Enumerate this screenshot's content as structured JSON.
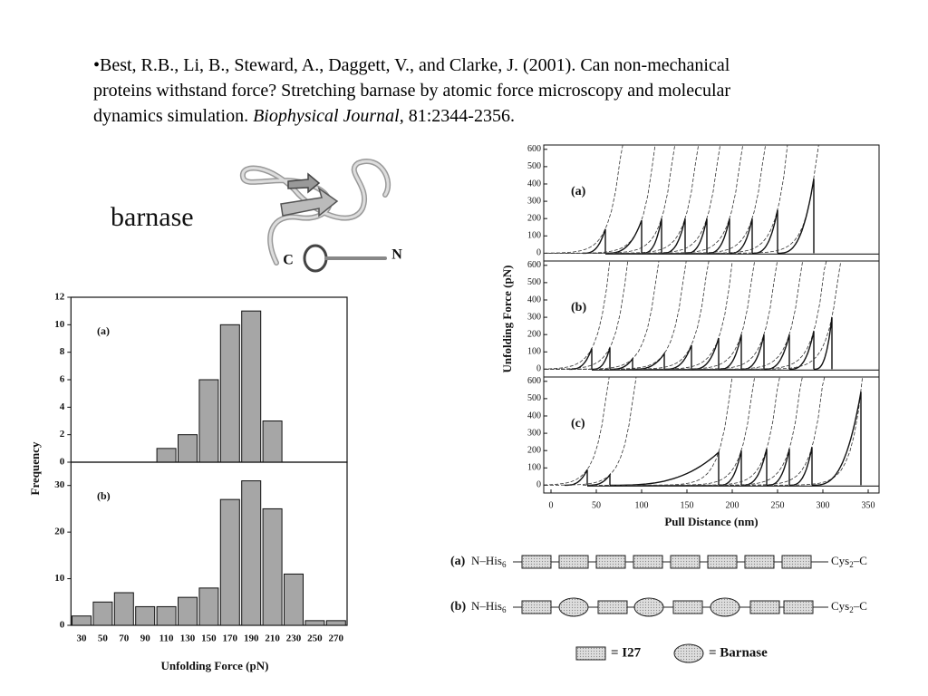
{
  "citation": {
    "line1": "•Best, R.B., Li, B., Steward, A., Daggett, V., and Clarke, J. (2001). Can non-mechanical",
    "line2": "proteins withstand force? Stretching barnase by atomic force microscopy and molecular",
    "line3": "dynamics simulation.",
    "journal": "Biophysical Journal",
    "tail": ", 81:2344-2356."
  },
  "protein": {
    "label": "barnase",
    "c_terminus": "C",
    "n_terminus": "N"
  },
  "chart_data": [
    {
      "type": "bar",
      "panel": "(a)",
      "ylabel": "Frequency",
      "color": "#a6a6a6",
      "values": [
        0,
        0,
        0,
        0,
        1,
        2,
        6,
        10,
        11,
        3,
        0,
        0,
        0
      ],
      "ylim": [
        0,
        12
      ],
      "yticks": [
        0,
        2,
        4,
        6,
        8,
        10,
        12
      ]
    },
    {
      "type": "bar",
      "panel": "(b)",
      "xlabel": "Unfolding Force (pN)",
      "color": "#a6a6a6",
      "categories": [
        "30",
        "50",
        "70",
        "90",
        "110",
        "130",
        "150",
        "170",
        "190",
        "210",
        "230",
        "250",
        "270"
      ],
      "values": [
        2,
        5,
        7,
        4,
        4,
        6,
        8,
        27,
        31,
        25,
        11,
        1,
        1
      ],
      "ylim": [
        0,
        35
      ],
      "yticks": [
        0,
        10,
        20,
        30
      ]
    },
    {
      "type": "sawtooth",
      "panel": "(a)",
      "color": "#111111",
      "x": [
        60,
        100,
        122,
        148,
        172,
        197,
        222,
        250,
        290
      ],
      "values": [
        140,
        190,
        200,
        200,
        200,
        200,
        200,
        250,
        430
      ],
      "xlim": [
        -8,
        362
      ],
      "ylim": [
        -45,
        625
      ],
      "yticks": [
        0,
        100,
        200,
        300,
        400,
        500,
        600
      ]
    },
    {
      "type": "sawtooth",
      "panel": "(b)",
      "ylabel": "Unfolding Force (pN)",
      "color": "#111111",
      "x": [
        45,
        65,
        90,
        125,
        155,
        185,
        210,
        235,
        263,
        290,
        310
      ],
      "values": [
        120,
        125,
        60,
        90,
        140,
        180,
        200,
        200,
        200,
        220,
        300
      ],
      "xlim": [
        -8,
        362
      ],
      "ylim": [
        -45,
        625
      ],
      "yticks": [
        0,
        100,
        200,
        300,
        400,
        500,
        600
      ]
    },
    {
      "type": "sawtooth",
      "panel": "(c)",
      "xlabel": "Pull Distance (nm)",
      "color": "#111111",
      "x": [
        40,
        65,
        185,
        210,
        238,
        263,
        288,
        342
      ],
      "values": [
        90,
        60,
        190,
        200,
        210,
        210,
        220,
        540
      ],
      "xlim": [
        -8,
        362
      ],
      "ylim": [
        -45,
        625
      ],
      "yticks": [
        0,
        100,
        200,
        300,
        400,
        500,
        600
      ],
      "xticks": [
        0,
        50,
        100,
        150,
        200,
        250,
        300,
        350
      ]
    }
  ],
  "schematic": {
    "row_a": "(a)",
    "row_b": "(b)",
    "n_end": "N–His",
    "n_sub": "6",
    "c_end": "Cys",
    "c_sub": "2",
    "c_tail": "–C",
    "legend_i27": "= I27",
    "legend_barnase": "= Barnase"
  }
}
